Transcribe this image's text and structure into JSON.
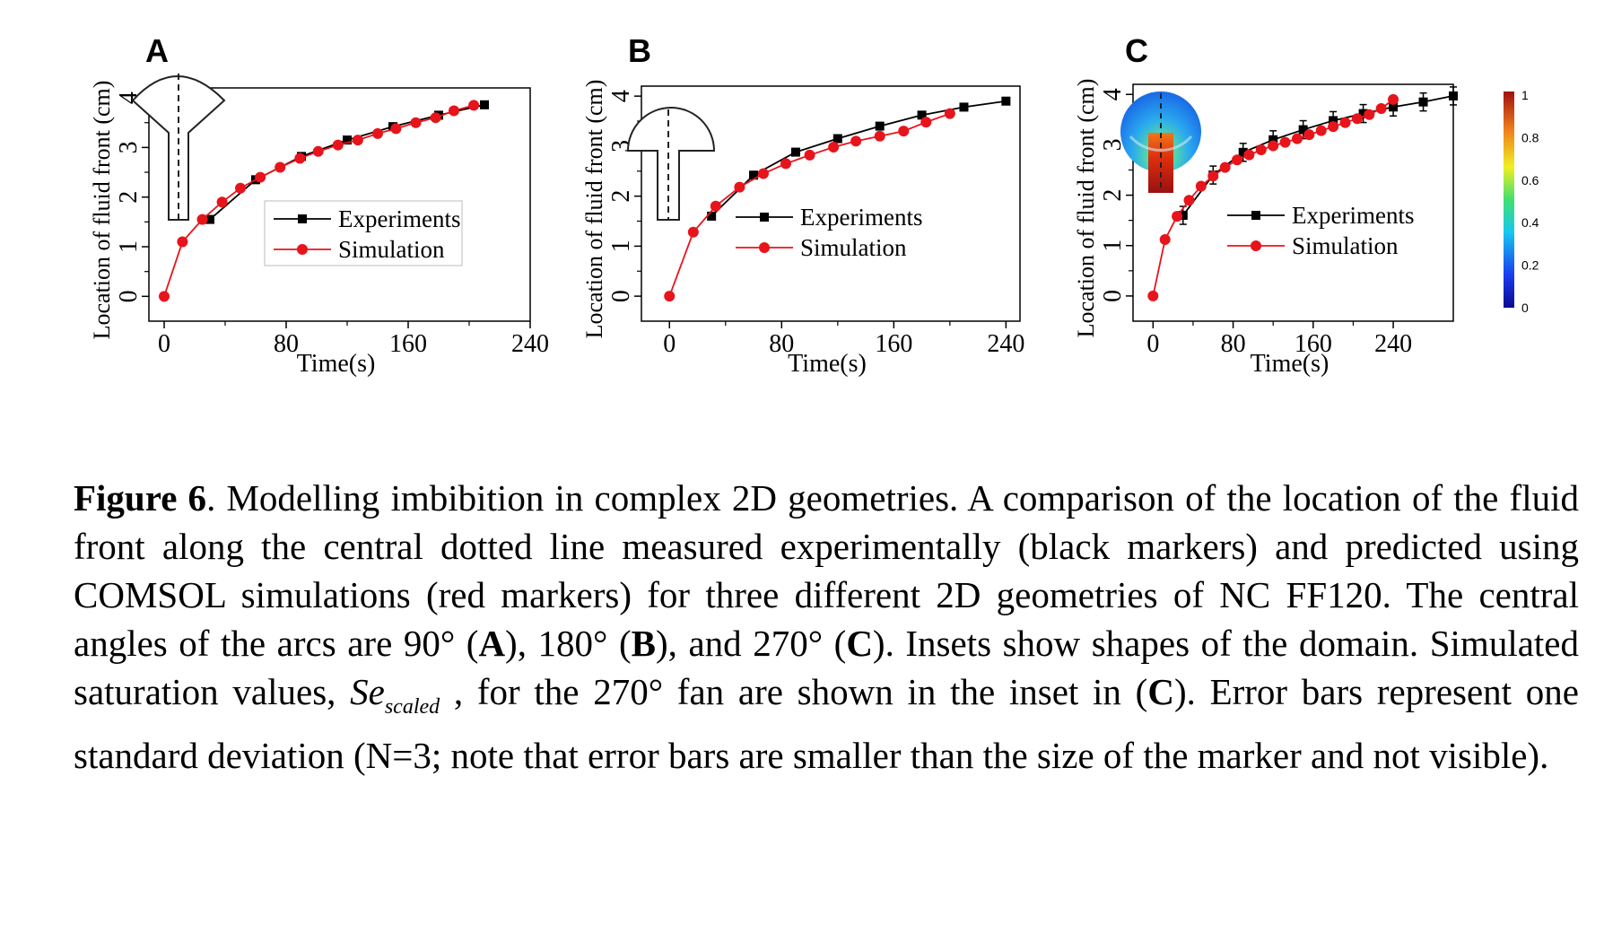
{
  "panels": [
    {
      "letter": "A",
      "chart_data": {
        "type": "line",
        "xlabel": "Time(s)",
        "ylabel": "Location of fluid front (cm)",
        "xlim": [
          -10,
          240
        ],
        "ylim": [
          -0.5,
          4.2
        ],
        "xticks": [
          0,
          80,
          160,
          240
        ],
        "yticks": [
          0,
          1,
          2,
          3,
          4
        ],
        "legend": "center-right",
        "inset": "90-degree-fan-shape",
        "series": [
          {
            "name": "Experiments",
            "color": "#000000",
            "marker": "square",
            "x": [
              30,
              60,
              90,
              120,
              150,
              180,
              210
            ],
            "y": [
              1.55,
              2.35,
              2.82,
              3.15,
              3.42,
              3.65,
              3.86
            ]
          },
          {
            "name": "Simulation",
            "color": "#e8141b",
            "marker": "circle",
            "x": [
              0,
              12,
              25,
              38,
              50,
              63,
              76,
              89,
              101,
              114,
              127,
              140,
              152,
              165,
              178,
              190,
              203
            ],
            "y": [
              0.0,
              1.1,
              1.55,
              1.9,
              2.18,
              2.4,
              2.6,
              2.78,
              2.92,
              3.05,
              3.15,
              3.28,
              3.38,
              3.5,
              3.6,
              3.74,
              3.85
            ]
          }
        ]
      }
    },
    {
      "letter": "B",
      "chart_data": {
        "type": "line",
        "xlabel": "Time(s)",
        "ylabel": "Location of fluid front (cm)",
        "xlim": [
          -20,
          250
        ],
        "ylim": [
          -0.5,
          4.2
        ],
        "xticks": [
          0,
          80,
          160,
          240
        ],
        "yticks": [
          0,
          1,
          2,
          3,
          4
        ],
        "legend": "center-right",
        "inset": "180-degree-fan-shape",
        "series": [
          {
            "name": "Experiments",
            "color": "#000000",
            "marker": "square",
            "x": [
              30,
              60,
              90,
              120,
              150,
              180,
              210,
              240
            ],
            "y": [
              1.6,
              2.42,
              2.88,
              3.15,
              3.4,
              3.62,
              3.78,
              3.9
            ]
          },
          {
            "name": "Simulation",
            "color": "#e8141b",
            "marker": "circle",
            "x": [
              0,
              17,
              33,
              50,
              67,
              83,
              100,
              117,
              133,
              150,
              167,
              183,
              200
            ],
            "y": [
              0.0,
              1.28,
              1.8,
              2.18,
              2.45,
              2.65,
              2.82,
              2.98,
              3.1,
              3.2,
              3.3,
              3.48,
              3.65
            ]
          }
        ]
      }
    },
    {
      "letter": "C",
      "chart_data": {
        "type": "line",
        "xlabel": "Time(s)",
        "ylabel": "Location of fluid front (cm)",
        "xlim": [
          -20,
          300
        ],
        "ylim": [
          -0.5,
          4.2
        ],
        "xticks": [
          0,
          80,
          160,
          240
        ],
        "yticks": [
          0,
          1,
          2,
          3,
          4
        ],
        "legend": "center-right",
        "inset": "270-degree-fan-saturation-map",
        "colorbar": {
          "ticks": [
            "1",
            "0.8",
            "0.6",
            "0.4",
            "0.2",
            "0"
          ]
        },
        "series": [
          {
            "name": "Experiments",
            "color": "#000000",
            "marker": "square",
            "error_bars": true,
            "x": [
              30,
              60,
              90,
              120,
              150,
              180,
              210,
              240,
              270,
              300
            ],
            "y": [
              1.6,
              2.4,
              2.85,
              3.1,
              3.3,
              3.48,
              3.62,
              3.75,
              3.85,
              3.97
            ]
          },
          {
            "name": "Simulation",
            "color": "#e8141b",
            "marker": "circle",
            "x": [
              0,
              12,
              24,
              36,
              48,
              60,
              72,
              84,
              96,
              108,
              120,
              132,
              144,
              156,
              168,
              180,
              192,
              204,
              216,
              228,
              240
            ],
            "y": [
              0.0,
              1.12,
              1.58,
              1.9,
              2.18,
              2.38,
              2.55,
              2.7,
              2.8,
              2.9,
              2.98,
              3.05,
              3.12,
              3.2,
              3.28,
              3.36,
              3.44,
              3.52,
              3.6,
              3.72,
              3.9
            ]
          }
        ]
      }
    }
  ],
  "caption": {
    "label": "Figure 6",
    "text_1": ". Modelling imbibition in complex 2D geometries. A comparison of the location of the fluid front along the central dotted line measured experimentally (black markers) and predicted using COMSOL simulations (red markers) for three different 2D geometries of NC FF120. The central angles of the arcs are 90° (",
    "ref_a": "A",
    "text_2": "), 180° (",
    "ref_b": "B",
    "text_3": "), and 270° (",
    "ref_c": "C",
    "text_4": "). Insets show shapes of the domain. Simulated saturation values, ",
    "symbol_main": "Se",
    "symbol_sub": "scaled",
    "text_5": " , for the 270° fan are shown in the inset in (",
    "ref_c2": "C",
    "text_6": "). Error bars represent one standard deviation (N=3; note that error bars are smaller than the size of the marker and not visible)."
  }
}
